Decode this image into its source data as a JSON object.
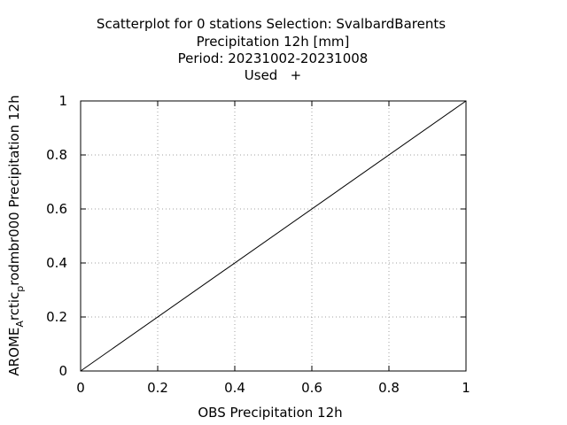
{
  "chart_data": {
    "type": "scatter",
    "title_lines": [
      "Scatterplot for    0 stations Selection: SvalbardBarents",
      "Precipitation 12h [mm]",
      "Period: 20231002-20231008",
      "Used   +"
    ],
    "xlabel": "OBS Precipitation 12h",
    "ylabel": {
      "part1": "AROME",
      "sub1": "A",
      "part2": "rctic",
      "sub2": "p",
      "part3": "rodmbr000 Precipitation 12h"
    },
    "xlim": [
      0,
      1
    ],
    "ylim": [
      0,
      1
    ],
    "x_ticks": [
      "0",
      "0.2",
      "0.4",
      "0.6",
      "0.8",
      "1"
    ],
    "y_ticks": [
      "0",
      "0.2",
      "0.4",
      "0.6",
      "0.8",
      "1"
    ],
    "grid": true,
    "reference_line": {
      "x": [
        0,
        1
      ],
      "y": [
        0,
        1
      ]
    },
    "series": [
      {
        "points": []
      }
    ]
  }
}
